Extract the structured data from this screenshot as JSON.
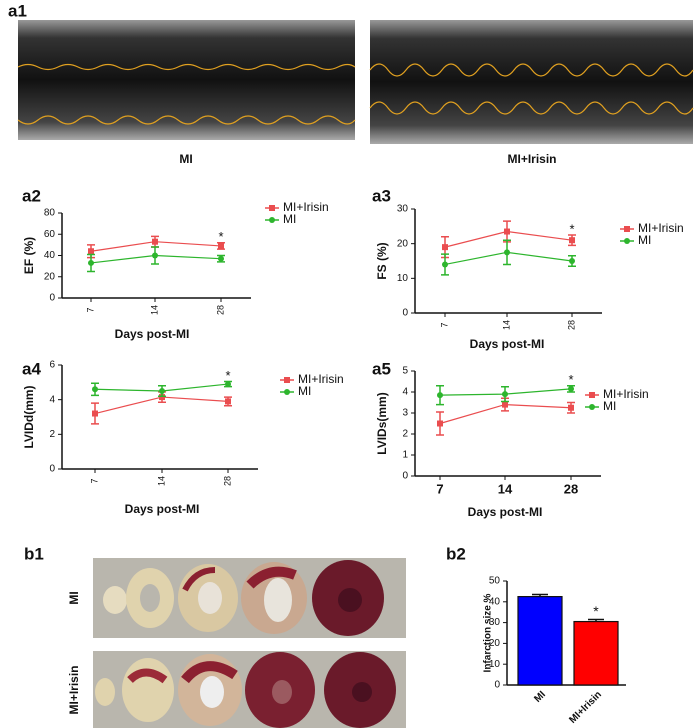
{
  "panel_labels": [
    "a1",
    "a2",
    "a3",
    "a4",
    "a5",
    "b1",
    "b2"
  ],
  "a1": {
    "captions": [
      "MI",
      "MI+Irisin"
    ]
  },
  "b1": {
    "row_labels": [
      "MI",
      "MI+Irisin"
    ]
  },
  "chart_data": [
    {
      "type": "line",
      "ylabel": "EF (%)",
      "xlabel": "Days post-MI",
      "categories": [
        "7",
        "14",
        "28"
      ],
      "ylim": [
        0,
        80
      ],
      "yticks": [
        0,
        20,
        40,
        60,
        80
      ],
      "series": [
        {
          "name": "MI+Irisin",
          "color": "#ea4d4f",
          "marker": "square",
          "values": [
            44,
            53,
            49
          ],
          "errors": [
            6,
            5,
            3
          ]
        },
        {
          "name": "MI",
          "color": "#2db52d",
          "marker": "circle",
          "values": [
            33,
            40,
            37
          ],
          "errors": [
            8,
            8,
            3
          ]
        }
      ],
      "annotations": [
        {
          "text": "*",
          "x": "28"
        }
      ]
    },
    {
      "type": "line",
      "ylabel": "FS (%)",
      "xlabel": "Days post-MI",
      "categories": [
        "7",
        "14",
        "28"
      ],
      "ylim": [
        0,
        30
      ],
      "yticks": [
        0,
        10,
        20,
        30
      ],
      "series": [
        {
          "name": "MI+Irisin",
          "color": "#ea4d4f",
          "marker": "square",
          "values": [
            19,
            23.5,
            21
          ],
          "errors": [
            3,
            3,
            1.5
          ]
        },
        {
          "name": "MI",
          "color": "#2db52d",
          "marker": "circle",
          "values": [
            14,
            17.5,
            15
          ],
          "errors": [
            3,
            3.5,
            1.5
          ]
        }
      ],
      "annotations": [
        {
          "text": "*",
          "x": "28"
        }
      ]
    },
    {
      "type": "line",
      "ylabel": "LVIDd(mm)",
      "xlabel": "Days post-MI",
      "categories": [
        "7",
        "14",
        "28"
      ],
      "ylim": [
        0,
        6
      ],
      "yticks": [
        0,
        2,
        4,
        6
      ],
      "series": [
        {
          "name": "MI+Irisin",
          "color": "#ea4d4f",
          "marker": "square",
          "values": [
            3.2,
            4.15,
            3.9
          ],
          "errors": [
            0.6,
            0.3,
            0.25
          ]
        },
        {
          "name": "MI",
          "color": "#2db52d",
          "marker": "circle",
          "values": [
            4.6,
            4.5,
            4.9
          ],
          "errors": [
            0.35,
            0.3,
            0.15
          ]
        }
      ],
      "annotations": [
        {
          "text": "*",
          "x": "28"
        }
      ]
    },
    {
      "type": "line",
      "ylabel": "LVIDs(mm)",
      "xlabel": "Days post-MI",
      "categories": [
        "7",
        "14",
        "28"
      ],
      "ylim": [
        0,
        5
      ],
      "yticks": [
        0,
        1,
        2,
        3,
        4,
        5
      ],
      "series": [
        {
          "name": "MI+Irisin",
          "color": "#ea4d4f",
          "marker": "square",
          "values": [
            2.5,
            3.4,
            3.25
          ],
          "errors": [
            0.55,
            0.3,
            0.25
          ]
        },
        {
          "name": "MI",
          "color": "#2db52d",
          "marker": "circle",
          "values": [
            3.85,
            3.9,
            4.15
          ],
          "errors": [
            0.45,
            0.35,
            0.15
          ]
        }
      ],
      "annotations": [
        {
          "text": "*",
          "x": "28"
        }
      ]
    },
    {
      "type": "bar",
      "ylabel": "Infarction size %",
      "categories": [
        "MI",
        "MI+Irisin"
      ],
      "values": [
        42.5,
        30.5
      ],
      "errors": [
        1,
        1
      ],
      "colors": [
        "#0000ff",
        "#ff0000"
      ],
      "ylim": [
        0,
        50
      ],
      "yticks": [
        0,
        10,
        20,
        30,
        40,
        50
      ],
      "annotations": [
        {
          "text": "*",
          "x": "MI+Irisin"
        }
      ]
    }
  ]
}
